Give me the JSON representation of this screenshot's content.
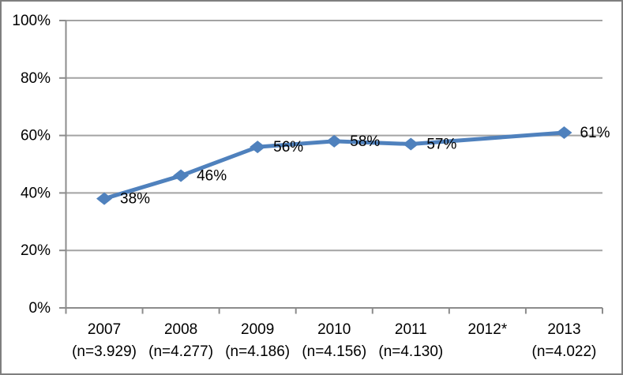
{
  "chart_data": {
    "type": "line",
    "title": "",
    "xlabel": "",
    "ylabel": "",
    "categories": [
      "2007",
      "2008",
      "2009",
      "2010",
      "2011",
      "2012*",
      "2013"
    ],
    "category_sublabels": [
      "(n=3.929)",
      "(n=4.277)",
      "(n=4.186)",
      "(n=4.156)",
      "(n=4.130)",
      "",
      "(n=4.022)"
    ],
    "series": [
      {
        "values": [
          38,
          46,
          56,
          58,
          57,
          null,
          61
        ],
        "data_labels": [
          "38%",
          "46%",
          "56%",
          "58%",
          "57%",
          "",
          "61%"
        ],
        "color": "#4F81BD",
        "marker": "diamond"
      }
    ],
    "ylim": [
      0,
      100
    ],
    "ytick_values": [
      0,
      20,
      40,
      60,
      80,
      100
    ],
    "ytick_labels": [
      "0%",
      "20%",
      "40%",
      "60%",
      "80%",
      "100%"
    ],
    "grid": true,
    "legend": "none",
    "colors": {
      "gridline": "#A3A3A3",
      "axis": "#8C8C8C",
      "border": "#7F7F7F",
      "background": "#FFFFFF",
      "text": "#000000"
    }
  }
}
